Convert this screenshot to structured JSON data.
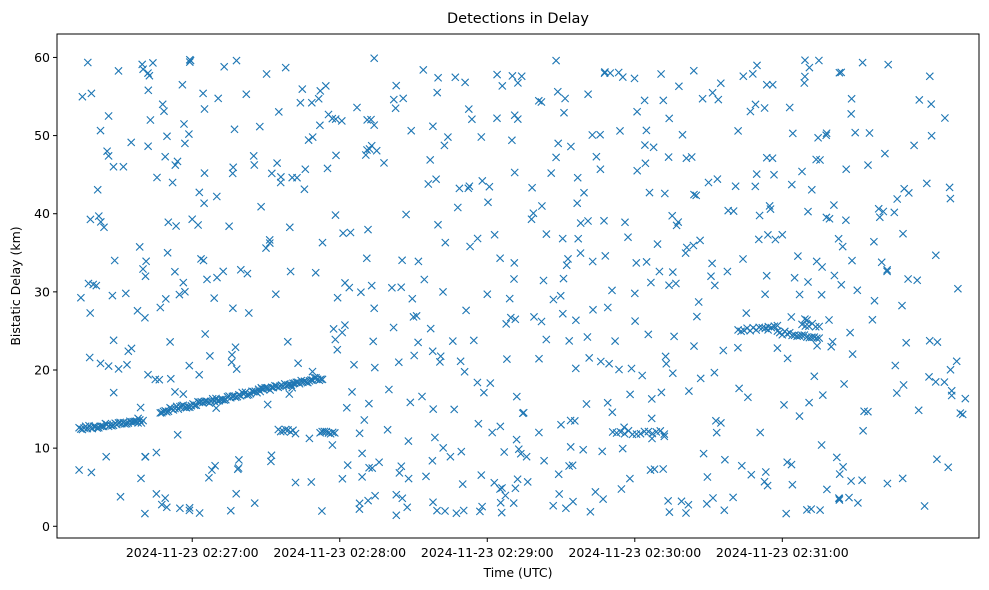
{
  "chart_data": {
    "type": "scatter",
    "title": "Detections in Delay",
    "xlabel": "Time (UTC)",
    "ylabel": "Bistatic Delay (km)",
    "marker": "x",
    "color": "#1f77b4",
    "x_unit": "seconds after 2024-11-23 02:26:00",
    "xlim": [
      -25,
      350
    ],
    "ylim": [
      -1.5,
      63
    ],
    "x_ticks": [
      {
        "value": 30,
        "label": "2024-11-23 02:27:00"
      },
      {
        "value": 90,
        "label": "2024-11-23 02:28:00"
      },
      {
        "value": 150,
        "label": "2024-11-23 02:29:00"
      },
      {
        "value": 210,
        "label": "2024-11-23 02:30:00"
      },
      {
        "value": 270,
        "label": "2024-11-23 02:31:00"
      }
    ],
    "y_ticks": [
      0,
      10,
      20,
      30,
      40,
      50,
      60
    ],
    "tracks": [
      {
        "x_start": -16,
        "x_end": 10,
        "y_start": 12.5,
        "y_end": 13.5,
        "count": 40
      },
      {
        "x_start": 17,
        "x_end": 83,
        "y_start": 14.7,
        "y_end": 19,
        "count": 100
      },
      {
        "x_start": 82,
        "x_end": 88,
        "y_start": 12,
        "y_end": 12,
        "count": 8
      },
      {
        "x_start": 65,
        "x_end": 72,
        "y_start": 12.3,
        "y_end": 12,
        "count": 8
      },
      {
        "x_start": 201,
        "x_end": 222,
        "y_start": 12,
        "y_end": 12,
        "count": 14
      },
      {
        "x_start": 252,
        "x_end": 268,
        "y_start": 25,
        "y_end": 25.5,
        "count": 14
      },
      {
        "x_start": 268,
        "x_end": 285,
        "y_start": 24.8,
        "y_end": 24.2,
        "count": 18
      },
      {
        "x_start": 278,
        "x_end": 285,
        "y_start": 25.9,
        "y_end": 25.6,
        "count": 6
      }
    ],
    "scatter_noise": {
      "x_range": [
        -16,
        345
      ],
      "y_range": [
        1.5,
        59.8
      ],
      "count": 520
    },
    "points": [
      [
        -16,
        7.2
      ],
      [
        -11,
        55.4
      ],
      [
        -11,
        6.9
      ],
      [
        -9,
        30.8
      ],
      [
        -8,
        39.7
      ],
      [
        -5,
        8.9
      ],
      [
        -4,
        20.5
      ],
      [
        -4,
        52.5
      ],
      [
        -4,
        47.4
      ],
      [
        -2,
        46
      ],
      [
        2,
        46
      ],
      [
        3,
        29.8
      ],
      [
        4,
        22.4
      ],
      [
        8,
        13.8
      ],
      [
        9,
        15.2
      ],
      [
        10,
        58.5
      ],
      [
        11,
        32
      ],
      [
        11,
        8.9
      ],
      [
        12,
        58
      ],
      [
        12,
        19.4
      ],
      [
        13,
        52
      ],
      [
        14,
        59.3
      ],
      [
        15,
        18.8
      ],
      [
        17,
        28
      ],
      [
        18,
        54
      ],
      [
        19,
        47.3
      ],
      [
        19,
        3.6
      ],
      [
        20,
        35
      ],
      [
        21,
        23.6
      ],
      [
        22,
        44
      ],
      [
        23,
        17.2
      ],
      [
        24,
        46.7
      ],
      [
        25,
        2.3
      ],
      [
        26,
        56.5
      ],
      [
        27,
        49
      ],
      [
        29,
        59.4
      ],
      [
        30,
        39.3
      ],
      [
        33,
        1.7
      ],
      [
        35,
        53.4
      ],
      [
        35,
        45.2
      ],
      [
        36,
        31.6
      ],
      [
        38,
        7.2
      ],
      [
        40,
        42.2
      ],
      [
        43,
        58.8
      ],
      [
        45,
        38.4
      ],
      [
        46,
        21
      ],
      [
        48,
        59.6
      ],
      [
        49,
        8.5
      ],
      [
        52,
        55.3
      ],
      [
        53,
        27.3
      ],
      [
        55,
        47.4
      ],
      [
        58,
        40.9
      ],
      [
        60,
        35.6
      ],
      [
        62,
        8.3
      ],
      [
        64,
        29.7
      ],
      [
        66,
        44
      ],
      [
        68,
        58.7
      ],
      [
        70,
        32.6
      ],
      [
        72,
        5.6
      ],
      [
        74,
        54.2
      ],
      [
        76,
        45.7
      ],
      [
        79,
        49.8
      ],
      [
        83,
        36.3
      ],
      [
        85,
        45.8
      ],
      [
        87,
        10.4
      ],
      [
        89,
        22.6
      ],
      [
        91,
        24.8
      ],
      [
        95,
        17.2
      ],
      [
        97,
        53.6
      ],
      [
        98,
        2.2
      ],
      [
        100,
        13.6
      ],
      [
        101,
        34.3
      ],
      [
        103,
        48.7
      ],
      [
        104,
        59.9
      ],
      [
        104,
        27.9
      ],
      [
        106,
        8.2
      ],
      [
        108,
        46.5
      ],
      [
        110,
        17.5
      ],
      [
        112,
        54.6
      ],
      [
        113,
        1.4
      ],
      [
        114,
        21
      ],
      [
        115,
        30.6
      ],
      [
        117,
        39.9
      ],
      [
        118,
        6.1
      ],
      [
        120,
        26.8
      ],
      [
        122,
        33.9
      ],
      [
        124,
        58.4
      ],
      [
        126,
        43.8
      ],
      [
        127,
        25.3
      ],
      [
        128,
        15
      ],
      [
        130,
        57.4
      ],
      [
        132,
        30
      ],
      [
        134,
        49.8
      ],
      [
        135,
        8.9
      ],
      [
        136,
        23.7
      ],
      [
        138,
        40.8
      ],
      [
        140,
        5.4
      ],
      [
        141,
        56.8
      ],
      [
        143,
        35.8
      ],
      [
        146,
        18.4
      ],
      [
        147,
        1.9
      ],
      [
        148,
        44.2
      ],
      [
        150,
        29.7
      ],
      [
        152,
        12
      ],
      [
        153,
        37.3
      ],
      [
        154,
        57.8
      ],
      [
        156,
        4.9
      ],
      [
        158,
        21.4
      ],
      [
        160,
        49.4
      ],
      [
        161,
        33.7
      ],
      [
        162,
        16.6
      ],
      [
        164,
        57.6
      ],
      [
        166,
        8.9
      ],
      [
        168,
        39.3
      ],
      [
        169,
        26.8
      ],
      [
        171,
        12
      ],
      [
        172,
        54.3
      ],
      [
        174,
        23.9
      ],
      [
        176,
        45.2
      ],
      [
        178,
        59.6
      ],
      [
        180,
        13
      ],
      [
        181,
        31.7
      ],
      [
        182,
        2.3
      ],
      [
        184,
        48.6
      ],
      [
        186,
        20.2
      ],
      [
        188,
        38.8
      ],
      [
        189,
        9.8
      ],
      [
        191,
        55.3
      ],
      [
        193,
        27.7
      ],
      [
        194,
        4.4
      ],
      [
        196,
        45.7
      ],
      [
        198,
        34.6
      ],
      [
        199,
        15.8
      ],
      [
        200,
        58
      ],
      [
        202,
        23.7
      ],
      [
        204,
        50.6
      ],
      [
        206,
        38.9
      ],
      [
        208,
        6.1
      ],
      [
        210,
        29.8
      ],
      [
        211,
        45.5
      ],
      [
        213,
        19.3
      ],
      [
        214,
        54.5
      ],
      [
        216,
        42.7
      ],
      [
        218,
        7.3
      ],
      [
        220,
        32.6
      ],
      [
        222,
        11.5
      ],
      [
        224,
        52.2
      ],
      [
        226,
        24.3
      ],
      [
        227,
        38.5
      ],
      [
        229,
        3.2
      ],
      [
        231,
        47.1
      ],
      [
        232,
        17.3
      ],
      [
        234,
        58.3
      ],
      [
        236,
        28.7
      ],
      [
        238,
        9.3
      ],
      [
        240,
        44
      ],
      [
        241,
        32
      ],
      [
        243,
        13.5
      ],
      [
        245,
        56.7
      ],
      [
        246,
        22.5
      ],
      [
        248,
        40.4
      ],
      [
        250,
        3.7
      ],
      [
        252,
        50.6
      ],
      [
        254,
        34.2
      ],
      [
        256,
        16.5
      ],
      [
        258,
        57.9
      ],
      [
        259,
        43.5
      ],
      [
        261,
        12
      ],
      [
        263,
        29.7
      ],
      [
        264,
        5.2
      ],
      [
        266,
        47.1
      ],
      [
        268,
        22.8
      ],
      [
        270,
        37.3
      ],
      [
        272,
        8.2
      ],
      [
        273,
        53.6
      ],
      [
        275,
        31.8
      ],
      [
        277,
        14.1
      ],
      [
        278,
        45.4
      ],
      [
        280,
        2.1
      ],
      [
        281,
        58.7
      ],
      [
        283,
        19.2
      ],
      [
        284,
        33.9
      ],
      [
        286,
        10.4
      ],
      [
        288,
        50.3
      ],
      [
        289,
        26.4
      ],
      [
        291,
        41.1
      ],
      [
        293,
        3.6
      ],
      [
        294,
        30.9
      ],
      [
        296,
        45.7
      ],
      [
        298,
        5.8
      ]
    ]
  }
}
